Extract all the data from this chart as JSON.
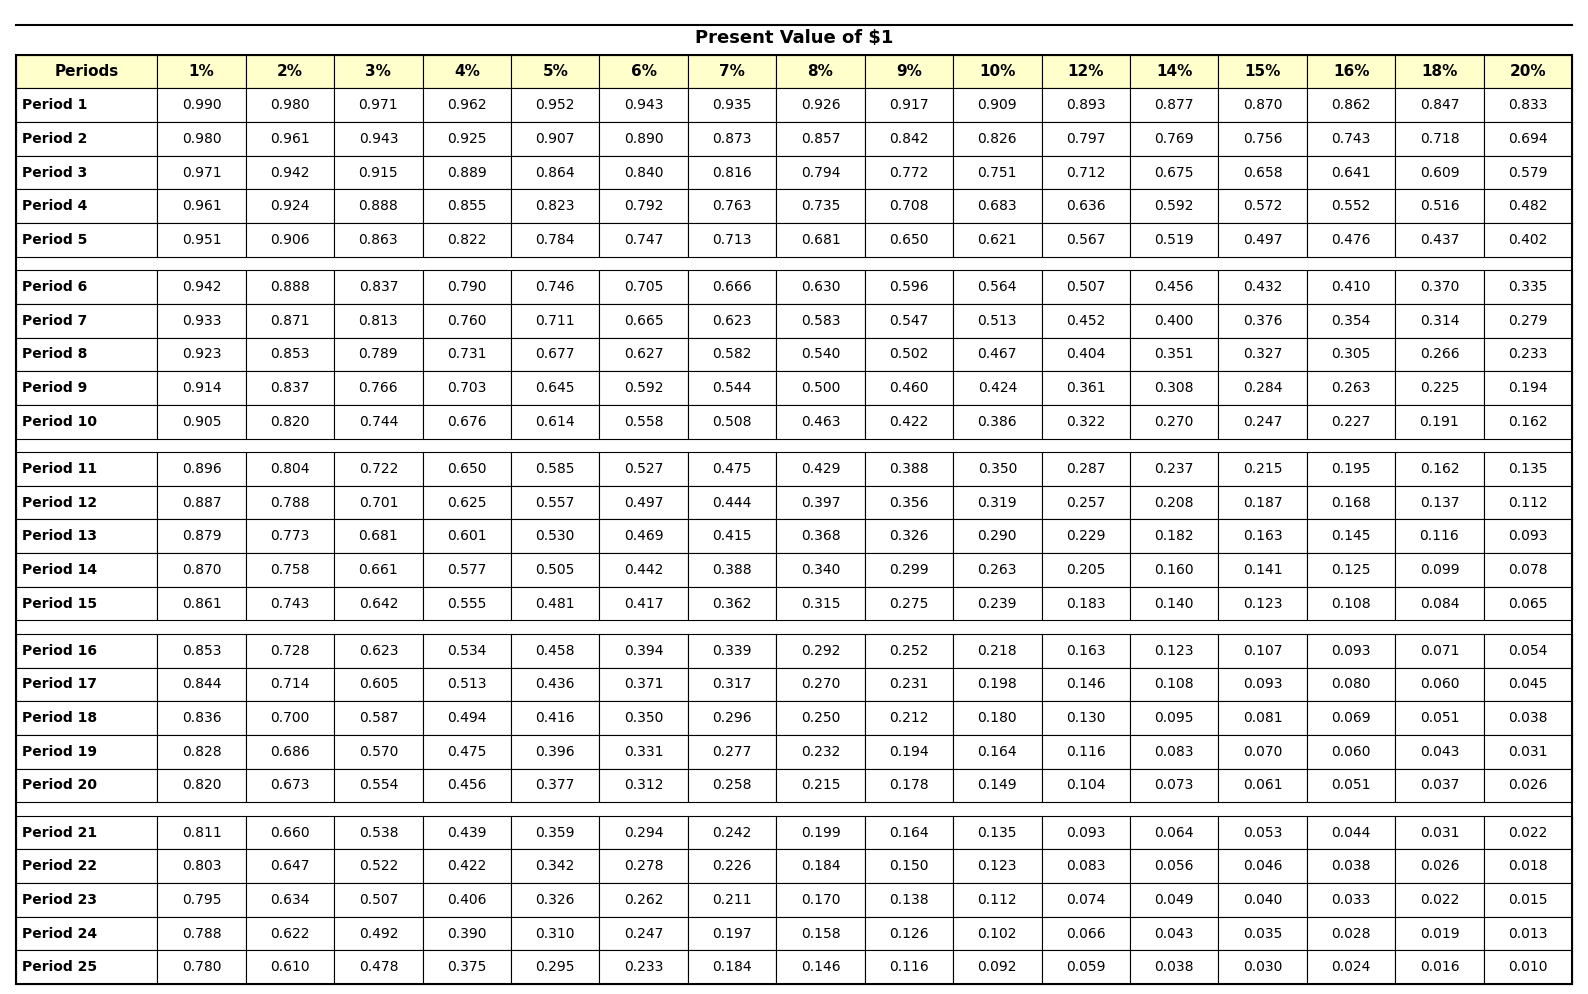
{
  "title": "Present Value of $1",
  "columns": [
    "Periods",
    "1%",
    "2%",
    "3%",
    "4%",
    "5%",
    "6%",
    "7%",
    "8%",
    "9%",
    "10%",
    "12%",
    "14%",
    "15%",
    "16%",
    "18%",
    "20%"
  ],
  "rows": [
    [
      "Period 1",
      "0.990",
      "0.980",
      "0.971",
      "0.962",
      "0.952",
      "0.943",
      "0.935",
      "0.926",
      "0.917",
      "0.909",
      "0.893",
      "0.877",
      "0.870",
      "0.862",
      "0.847",
      "0.833"
    ],
    [
      "Period 2",
      "0.980",
      "0.961",
      "0.943",
      "0.925",
      "0.907",
      "0.890",
      "0.873",
      "0.857",
      "0.842",
      "0.826",
      "0.797",
      "0.769",
      "0.756",
      "0.743",
      "0.718",
      "0.694"
    ],
    [
      "Period 3",
      "0.971",
      "0.942",
      "0.915",
      "0.889",
      "0.864",
      "0.840",
      "0.816",
      "0.794",
      "0.772",
      "0.751",
      "0.712",
      "0.675",
      "0.658",
      "0.641",
      "0.609",
      "0.579"
    ],
    [
      "Period 4",
      "0.961",
      "0.924",
      "0.888",
      "0.855",
      "0.823",
      "0.792",
      "0.763",
      "0.735",
      "0.708",
      "0.683",
      "0.636",
      "0.592",
      "0.572",
      "0.552",
      "0.516",
      "0.482"
    ],
    [
      "Period 5",
      "0.951",
      "0.906",
      "0.863",
      "0.822",
      "0.784",
      "0.747",
      "0.713",
      "0.681",
      "0.650",
      "0.621",
      "0.567",
      "0.519",
      "0.497",
      "0.476",
      "0.437",
      "0.402"
    ],
    [
      "Period 6",
      "0.942",
      "0.888",
      "0.837",
      "0.790",
      "0.746",
      "0.705",
      "0.666",
      "0.630",
      "0.596",
      "0.564",
      "0.507",
      "0.456",
      "0.432",
      "0.410",
      "0.370",
      "0.335"
    ],
    [
      "Period 7",
      "0.933",
      "0.871",
      "0.813",
      "0.760",
      "0.711",
      "0.665",
      "0.623",
      "0.583",
      "0.547",
      "0.513",
      "0.452",
      "0.400",
      "0.376",
      "0.354",
      "0.314",
      "0.279"
    ],
    [
      "Period 8",
      "0.923",
      "0.853",
      "0.789",
      "0.731",
      "0.677",
      "0.627",
      "0.582",
      "0.540",
      "0.502",
      "0.467",
      "0.404",
      "0.351",
      "0.327",
      "0.305",
      "0.266",
      "0.233"
    ],
    [
      "Period 9",
      "0.914",
      "0.837",
      "0.766",
      "0.703",
      "0.645",
      "0.592",
      "0.544",
      "0.500",
      "0.460",
      "0.424",
      "0.361",
      "0.308",
      "0.284",
      "0.263",
      "0.225",
      "0.194"
    ],
    [
      "Period 10",
      "0.905",
      "0.820",
      "0.744",
      "0.676",
      "0.614",
      "0.558",
      "0.508",
      "0.463",
      "0.422",
      "0.386",
      "0.322",
      "0.270",
      "0.247",
      "0.227",
      "0.191",
      "0.162"
    ],
    [
      "Period 11",
      "0.896",
      "0.804",
      "0.722",
      "0.650",
      "0.585",
      "0.527",
      "0.475",
      "0.429",
      "0.388",
      "0.350",
      "0.287",
      "0.237",
      "0.215",
      "0.195",
      "0.162",
      "0.135"
    ],
    [
      "Period 12",
      "0.887",
      "0.788",
      "0.701",
      "0.625",
      "0.557",
      "0.497",
      "0.444",
      "0.397",
      "0.356",
      "0.319",
      "0.257",
      "0.208",
      "0.187",
      "0.168",
      "0.137",
      "0.112"
    ],
    [
      "Period 13",
      "0.879",
      "0.773",
      "0.681",
      "0.601",
      "0.530",
      "0.469",
      "0.415",
      "0.368",
      "0.326",
      "0.290",
      "0.229",
      "0.182",
      "0.163",
      "0.145",
      "0.116",
      "0.093"
    ],
    [
      "Period 14",
      "0.870",
      "0.758",
      "0.661",
      "0.577",
      "0.505",
      "0.442",
      "0.388",
      "0.340",
      "0.299",
      "0.263",
      "0.205",
      "0.160",
      "0.141",
      "0.125",
      "0.099",
      "0.078"
    ],
    [
      "Period 15",
      "0.861",
      "0.743",
      "0.642",
      "0.555",
      "0.481",
      "0.417",
      "0.362",
      "0.315",
      "0.275",
      "0.239",
      "0.183",
      "0.140",
      "0.123",
      "0.108",
      "0.084",
      "0.065"
    ],
    [
      "Period 16",
      "0.853",
      "0.728",
      "0.623",
      "0.534",
      "0.458",
      "0.394",
      "0.339",
      "0.292",
      "0.252",
      "0.218",
      "0.163",
      "0.123",
      "0.107",
      "0.093",
      "0.071",
      "0.054"
    ],
    [
      "Period 17",
      "0.844",
      "0.714",
      "0.605",
      "0.513",
      "0.436",
      "0.371",
      "0.317",
      "0.270",
      "0.231",
      "0.198",
      "0.146",
      "0.108",
      "0.093",
      "0.080",
      "0.060",
      "0.045"
    ],
    [
      "Period 18",
      "0.836",
      "0.700",
      "0.587",
      "0.494",
      "0.416",
      "0.350",
      "0.296",
      "0.250",
      "0.212",
      "0.180",
      "0.130",
      "0.095",
      "0.081",
      "0.069",
      "0.051",
      "0.038"
    ],
    [
      "Period 19",
      "0.828",
      "0.686",
      "0.570",
      "0.475",
      "0.396",
      "0.331",
      "0.277",
      "0.232",
      "0.194",
      "0.164",
      "0.116",
      "0.083",
      "0.070",
      "0.060",
      "0.043",
      "0.031"
    ],
    [
      "Period 20",
      "0.820",
      "0.673",
      "0.554",
      "0.456",
      "0.377",
      "0.312",
      "0.258",
      "0.215",
      "0.178",
      "0.149",
      "0.104",
      "0.073",
      "0.061",
      "0.051",
      "0.037",
      "0.026"
    ],
    [
      "Period 21",
      "0.811",
      "0.660",
      "0.538",
      "0.439",
      "0.359",
      "0.294",
      "0.242",
      "0.199",
      "0.164",
      "0.135",
      "0.093",
      "0.064",
      "0.053",
      "0.044",
      "0.031",
      "0.022"
    ],
    [
      "Period 22",
      "0.803",
      "0.647",
      "0.522",
      "0.422",
      "0.342",
      "0.278",
      "0.226",
      "0.184",
      "0.150",
      "0.123",
      "0.083",
      "0.056",
      "0.046",
      "0.038",
      "0.026",
      "0.018"
    ],
    [
      "Period 23",
      "0.795",
      "0.634",
      "0.507",
      "0.406",
      "0.326",
      "0.262",
      "0.211",
      "0.170",
      "0.138",
      "0.112",
      "0.074",
      "0.049",
      "0.040",
      "0.033",
      "0.022",
      "0.015"
    ],
    [
      "Period 24",
      "0.788",
      "0.622",
      "0.492",
      "0.390",
      "0.310",
      "0.247",
      "0.197",
      "0.158",
      "0.126",
      "0.102",
      "0.066",
      "0.043",
      "0.035",
      "0.028",
      "0.019",
      "0.013"
    ],
    [
      "Period 25",
      "0.780",
      "0.610",
      "0.478",
      "0.375",
      "0.295",
      "0.233",
      "0.184",
      "0.146",
      "0.116",
      "0.092",
      "0.059",
      "0.038",
      "0.030",
      "0.024",
      "0.016",
      "0.010"
    ]
  ],
  "group_breaks": [
    5,
    10,
    15,
    20
  ],
  "header_bg": "#ffffcc",
  "cell_bg_white": "#ffffff",
  "border_color": "#000000",
  "title_fontsize": 13,
  "header_fontsize": 11,
  "cell_fontsize": 10,
  "background_color": "#ffffff"
}
